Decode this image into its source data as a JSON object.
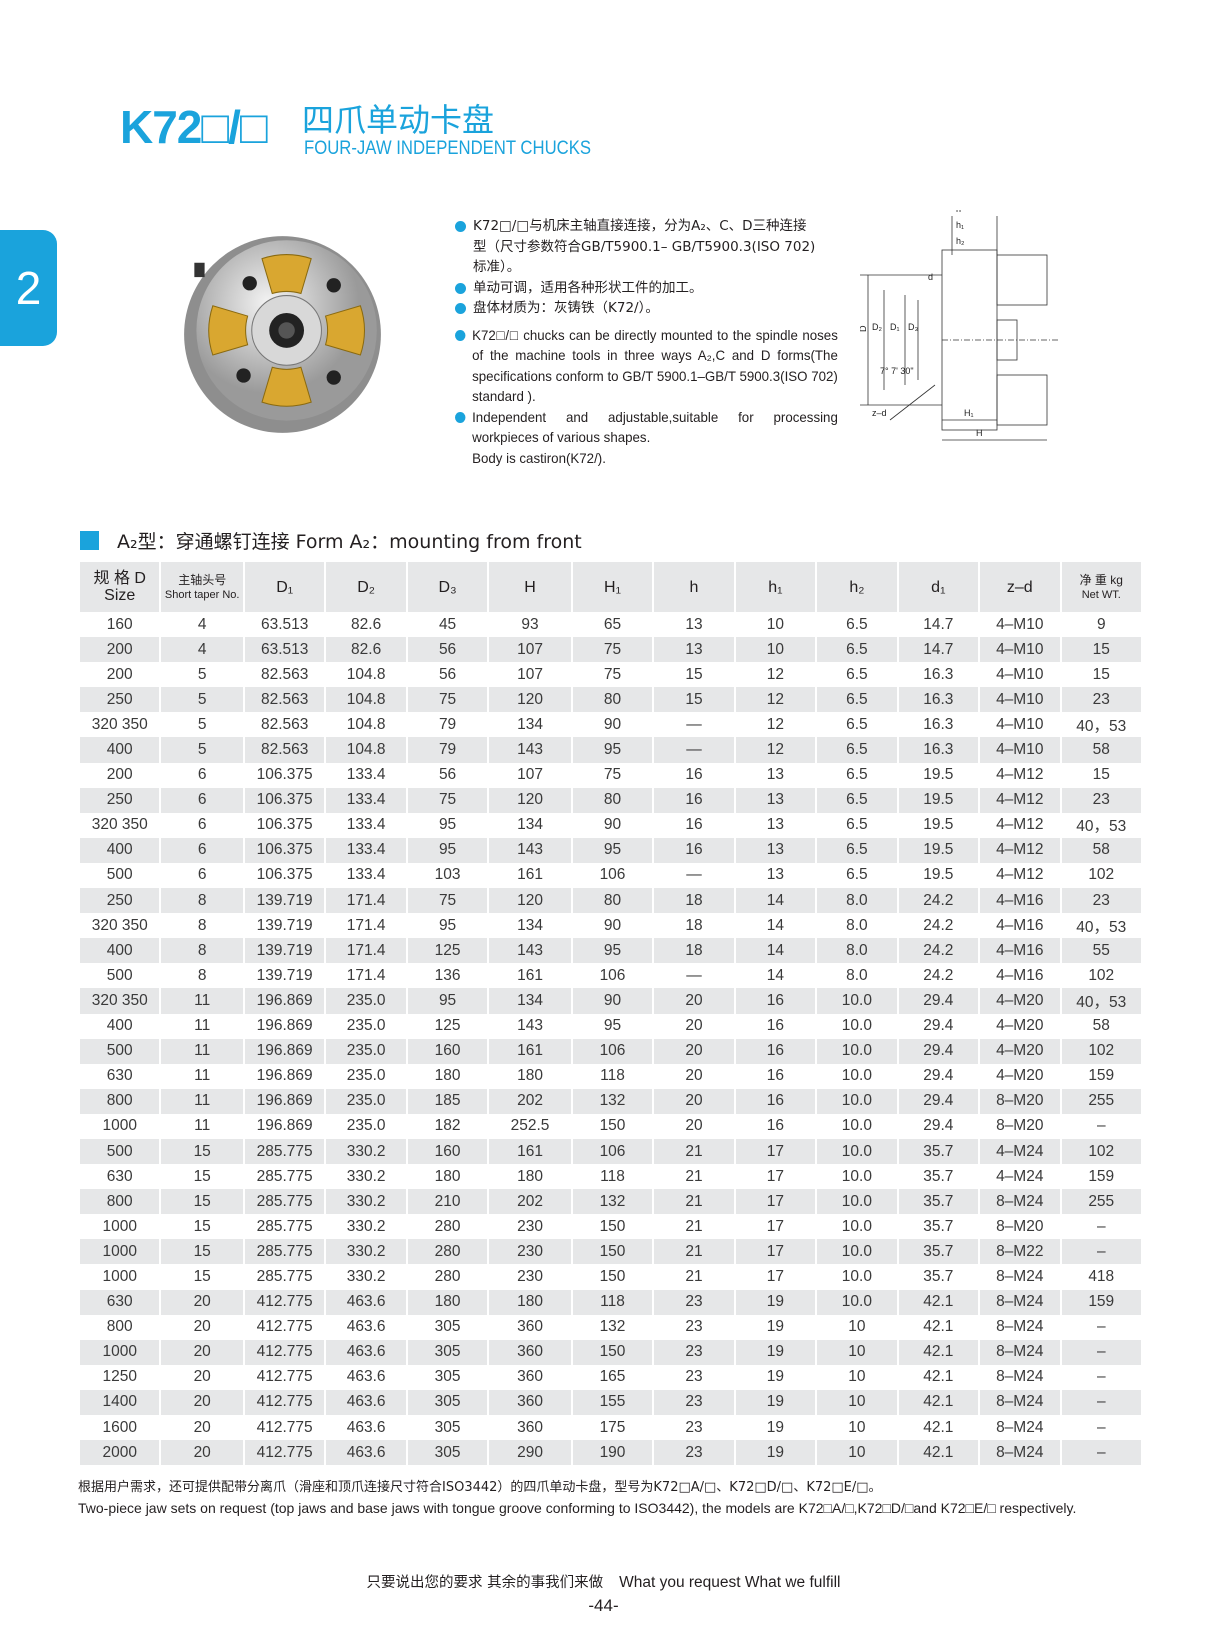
{
  "header": {
    "model": "K72□/□",
    "title_cn": "四爪单动卡盘",
    "title_en": "FOUR-JAW INDEPENDENT CHUCKS",
    "section_tab": "2"
  },
  "description": {
    "cn": [
      "K72□/□与机床主轴直接连接，分为A₂、C、D三种连接型（尺寸参数符合GB/T5900.1–  GB/T5900.3(ISO 702)标准）。",
      "单动可调，适用各种形状工件的加工。",
      "盘体材质为：灰铸铁（K72/）。"
    ],
    "en": [
      "K72□/□ chucks can be directly mounted to the spindle noses of the machine tools in three ways A₂,C and D forms(The specifications conform to GB/T 5900.1–GB/T 5900.3(ISO 702) standard ).",
      "Independent and adjustable,suitable for processing workpieces of various shapes.",
      "Body is castiron(K72/)."
    ]
  },
  "diagram": {
    "labels": {
      "h": "h",
      "h1": "h₁",
      "h2": "h₂",
      "d": "d",
      "D": "D",
      "D2": "D₂",
      "D1": "D₁",
      "D3": "D₃",
      "angle": "7° 7' 30\"",
      "zd": "z–d",
      "H1": "H₁",
      "H": "H"
    }
  },
  "section": {
    "title": "A₂型：穿通螺钉连接   Form A₂：mounting from front",
    "accent": "#1aa3dc"
  },
  "table": {
    "headers": [
      {
        "cn": "规 格 D",
        "en": "Size"
      },
      {
        "cn": "主轴头号",
        "en": "Short taper No."
      },
      {
        "en": "D₁"
      },
      {
        "en": "D₂"
      },
      {
        "en": "D₃"
      },
      {
        "en": "H"
      },
      {
        "en": "H₁"
      },
      {
        "en": "h"
      },
      {
        "en": "h₁"
      },
      {
        "en": "h₂"
      },
      {
        "en": "d₁"
      },
      {
        "en": "z–d"
      },
      {
        "cn": "净 重 kg",
        "en": "Net WT."
      }
    ],
    "rows": [
      [
        "160",
        "4",
        "63.513",
        "82.6",
        "45",
        "93",
        "65",
        "13",
        "10",
        "6.5",
        "14.7",
        "4–M10",
        "9"
      ],
      [
        "200",
        "4",
        "63.513",
        "82.6",
        "56",
        "107",
        "75",
        "13",
        "10",
        "6.5",
        "14.7",
        "4–M10",
        "15"
      ],
      [
        "200",
        "5",
        "82.563",
        "104.8",
        "56",
        "107",
        "75",
        "15",
        "12",
        "6.5",
        "16.3",
        "4–M10",
        "15"
      ],
      [
        "250",
        "5",
        "82.563",
        "104.8",
        "75",
        "120",
        "80",
        "15",
        "12",
        "6.5",
        "16.3",
        "4–M10",
        "23"
      ],
      [
        "320 350",
        "5",
        "82.563",
        "104.8",
        "79",
        "134",
        "90",
        "—",
        "12",
        "6.5",
        "16.3",
        "4–M10",
        "40，53"
      ],
      [
        "400",
        "5",
        "82.563",
        "104.8",
        "79",
        "143",
        "95",
        "—",
        "12",
        "6.5",
        "16.3",
        "4–M10",
        "58"
      ],
      [
        "200",
        "6",
        "106.375",
        "133.4",
        "56",
        "107",
        "75",
        "16",
        "13",
        "6.5",
        "19.5",
        "4–M12",
        "15"
      ],
      [
        "250",
        "6",
        "106.375",
        "133.4",
        "75",
        "120",
        "80",
        "16",
        "13",
        "6.5",
        "19.5",
        "4–M12",
        "23"
      ],
      [
        "320 350",
        "6",
        "106.375",
        "133.4",
        "95",
        "134",
        "90",
        "16",
        "13",
        "6.5",
        "19.5",
        "4–M12",
        "40，53"
      ],
      [
        "400",
        "6",
        "106.375",
        "133.4",
        "95",
        "143",
        "95",
        "16",
        "13",
        "6.5",
        "19.5",
        "4–M12",
        "58"
      ],
      [
        "500",
        "6",
        "106.375",
        "133.4",
        "103",
        "161",
        "106",
        "—",
        "13",
        "6.5",
        "19.5",
        "4–M12",
        "102"
      ],
      [
        "250",
        "8",
        "139.719",
        "171.4",
        "75",
        "120",
        "80",
        "18",
        "14",
        "8.0",
        "24.2",
        "4–M16",
        "23"
      ],
      [
        "320 350",
        "8",
        "139.719",
        "171.4",
        "95",
        "134",
        "90",
        "18",
        "14",
        "8.0",
        "24.2",
        "4–M16",
        "40，53"
      ],
      [
        "400",
        "8",
        "139.719",
        "171.4",
        "125",
        "143",
        "95",
        "18",
        "14",
        "8.0",
        "24.2",
        "4–M16",
        "55"
      ],
      [
        "500",
        "8",
        "139.719",
        "171.4",
        "136",
        "161",
        "106",
        "—",
        "14",
        "8.0",
        "24.2",
        "4–M16",
        "102"
      ],
      [
        "320 350",
        "11",
        "196.869",
        "235.0",
        "95",
        "134",
        "90",
        "20",
        "16",
        "10.0",
        "29.4",
        "4–M20",
        "40，53"
      ],
      [
        "400",
        "11",
        "196.869",
        "235.0",
        "125",
        "143",
        "95",
        "20",
        "16",
        "10.0",
        "29.4",
        "4–M20",
        "58"
      ],
      [
        "500",
        "11",
        "196.869",
        "235.0",
        "160",
        "161",
        "106",
        "20",
        "16",
        "10.0",
        "29.4",
        "4–M20",
        "102"
      ],
      [
        "630",
        "11",
        "196.869",
        "235.0",
        "180",
        "180",
        "118",
        "20",
        "16",
        "10.0",
        "29.4",
        "4–M20",
        "159"
      ],
      [
        "800",
        "11",
        "196.869",
        "235.0",
        "185",
        "202",
        "132",
        "20",
        "16",
        "10.0",
        "29.4",
        "8–M20",
        "255"
      ],
      [
        "1000",
        "11",
        "196.869",
        "235.0",
        "182",
        "252.5",
        "150",
        "20",
        "16",
        "10.0",
        "29.4",
        "8–M20",
        "–"
      ],
      [
        "500",
        "15",
        "285.775",
        "330.2",
        "160",
        "161",
        "106",
        "21",
        "17",
        "10.0",
        "35.7",
        "4–M24",
        "102"
      ],
      [
        "630",
        "15",
        "285.775",
        "330.2",
        "180",
        "180",
        "118",
        "21",
        "17",
        "10.0",
        "35.7",
        "4–M24",
        "159"
      ],
      [
        "800",
        "15",
        "285.775",
        "330.2",
        "210",
        "202",
        "132",
        "21",
        "17",
        "10.0",
        "35.7",
        "8–M24",
        "255"
      ],
      [
        "1000",
        "15",
        "285.775",
        "330.2",
        "280",
        "230",
        "150",
        "21",
        "17",
        "10.0",
        "35.7",
        "8–M20",
        "–"
      ],
      [
        "1000",
        "15",
        "285.775",
        "330.2",
        "280",
        "230",
        "150",
        "21",
        "17",
        "10.0",
        "35.7",
        "8–M22",
        "–"
      ],
      [
        "1000",
        "15",
        "285.775",
        "330.2",
        "280",
        "230",
        "150",
        "21",
        "17",
        "10.0",
        "35.7",
        "8–M24",
        "418"
      ],
      [
        "630",
        "20",
        "412.775",
        "463.6",
        "180",
        "180",
        "118",
        "23",
        "19",
        "10.0",
        "42.1",
        "8–M24",
        "159"
      ],
      [
        "800",
        "20",
        "412.775",
        "463.6",
        "305",
        "360",
        "132",
        "23",
        "19",
        "10",
        "42.1",
        "8–M24",
        "–"
      ],
      [
        "1000",
        "20",
        "412.775",
        "463.6",
        "305",
        "360",
        "150",
        "23",
        "19",
        "10",
        "42.1",
        "8–M24",
        "–"
      ],
      [
        "1250",
        "20",
        "412.775",
        "463.6",
        "305",
        "360",
        "165",
        "23",
        "19",
        "10",
        "42.1",
        "8–M24",
        "–"
      ],
      [
        "1400",
        "20",
        "412.775",
        "463.6",
        "305",
        "360",
        "155",
        "23",
        "19",
        "10",
        "42.1",
        "8–M24",
        "–"
      ],
      [
        "1600",
        "20",
        "412.775",
        "463.6",
        "305",
        "360",
        "175",
        "23",
        "19",
        "10",
        "42.1",
        "8–M24",
        "–"
      ],
      [
        "2000",
        "20",
        "412.775",
        "463.6",
        "305",
        "290",
        "190",
        "23",
        "19",
        "10",
        "42.1",
        "8–M24",
        "–"
      ]
    ]
  },
  "notes": {
    "cn": "根据用户需求，还可提供配带分离爪（滑座和顶爪连接尺寸符合ISO3442）的四爪单动卡盘，型号为K72□A/□、K72□D/□、K72□E/□。",
    "en": "Two-piece jaw sets on request (top jaws and base jaws with tongue groove conforming to ISO3442), the models are K72□A/□,K72□D/□and K72□E/□ respectively."
  },
  "footer": {
    "tagline_cn": "只要说出您的要求   其余的事我们来做",
    "tagline_en": "What you request  What we fulfill",
    "page": "-44-"
  }
}
